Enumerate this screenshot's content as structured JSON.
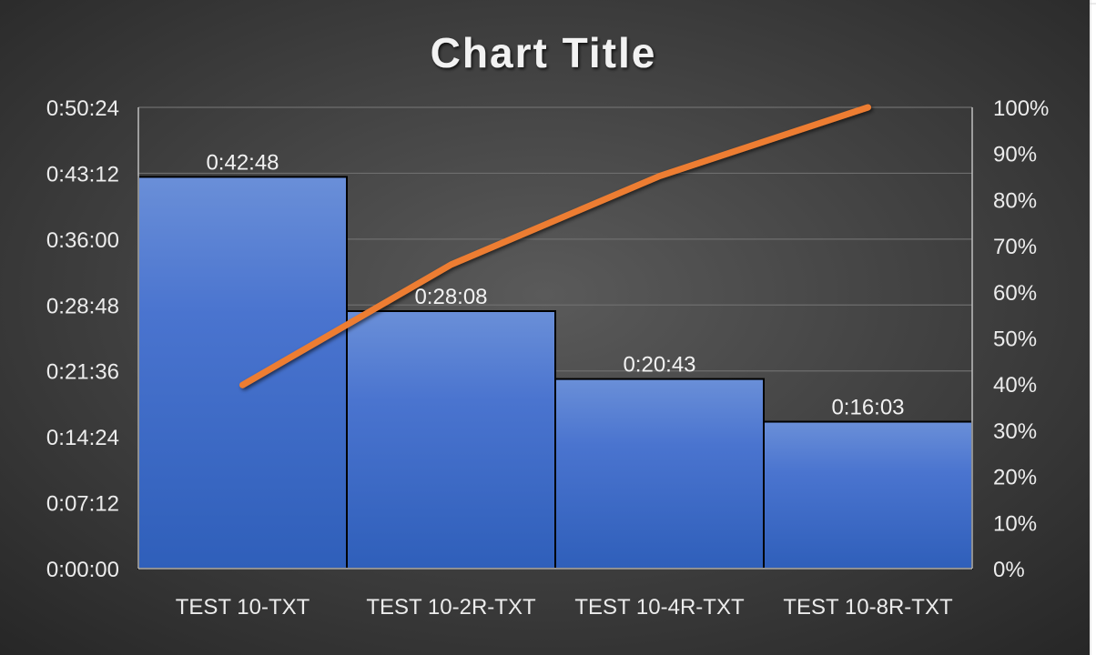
{
  "chart_data": {
    "type": "pareto",
    "title": "Chart Title",
    "categories": [
      "TEST 10-TXT",
      "TEST 10-2R-TXT",
      "TEST 10-4R-TXT",
      "TEST 10-8R-TXT"
    ],
    "bar_series": {
      "values_seconds": [
        2568,
        1688,
        1243,
        963
      ],
      "data_labels": [
        "0:42:48",
        "0:28:08",
        "0:20:43",
        "0:16:03"
      ],
      "color": "#4472C4"
    },
    "line_series": {
      "values_percent": [
        39.8,
        65.9,
        85.1,
        100
      ],
      "color": "#ED7D31"
    },
    "y_axis_left": {
      "min_seconds": 0,
      "max_seconds": 3024,
      "tick_labels": [
        "0:00:00",
        "0:07:12",
        "0:14:24",
        "0:21:36",
        "0:28:48",
        "0:36:00",
        "0:43:12",
        "0:50:24"
      ]
    },
    "y_axis_right": {
      "min": 0,
      "max": 100,
      "tick_labels": [
        "0%",
        "10%",
        "20%",
        "30%",
        "40%",
        "50%",
        "60%",
        "70%",
        "80%",
        "90%",
        "100%"
      ]
    },
    "grid": true,
    "legend": "none",
    "background": "#404040"
  }
}
